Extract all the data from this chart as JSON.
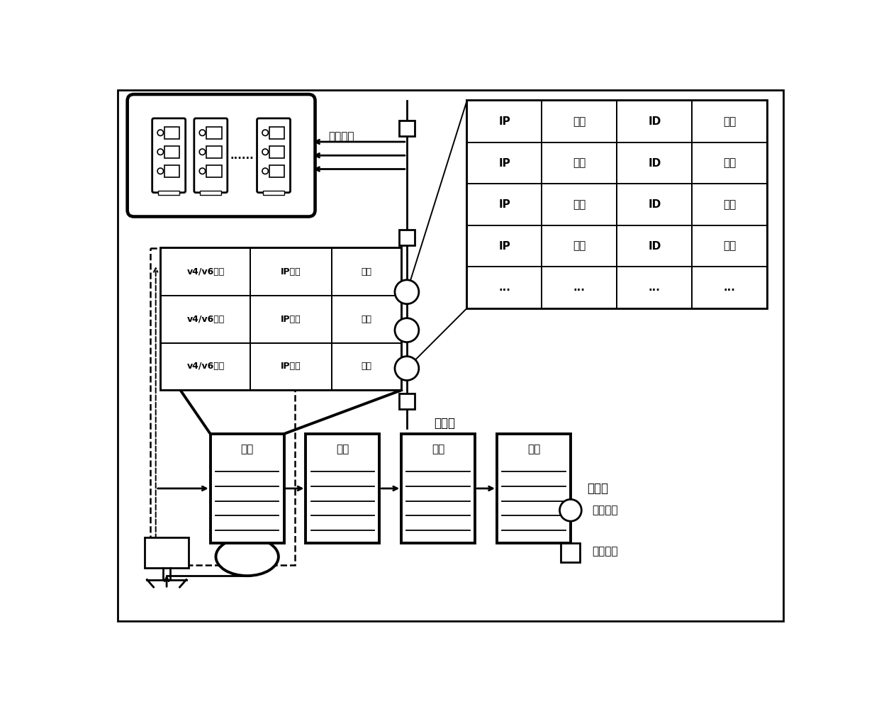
{
  "bg_color": "#ffffff",
  "heartbeat_label": "心跳検验",
  "secondary_chain_label": "二级链",
  "top_chain_label": "顶级链",
  "seed_node_label": "种子节点",
  "normal_node_label": "普通节点",
  "block_label": "区块",
  "peer_row_data": [
    [
      "v4/v6版本",
      "IP地址",
      "端口"
    ],
    [
      "v4/v6版本",
      "IP地址",
      "端口"
    ],
    [
      "v4/v6版本",
      "IP地址",
      "端口"
    ]
  ],
  "big_table_data": [
    [
      "IP",
      "端口",
      "ID",
      "负载"
    ],
    [
      "IP",
      "端口",
      "ID",
      "负载"
    ],
    [
      "IP",
      "端口",
      "ID",
      "负载"
    ],
    [
      "IP",
      "端口",
      "ID",
      "负载"
    ],
    [
      "...",
      "...",
      "...",
      "..."
    ]
  ],
  "dots_label": "......",
  "lw_thick": 2.8,
  "lw_med": 2.0,
  "lw_thin": 1.4
}
